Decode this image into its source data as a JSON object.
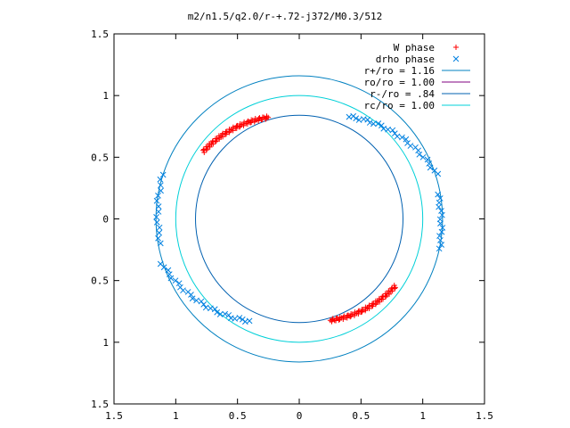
{
  "chart_data": {
    "type": "scatter",
    "title": "m2/n1.5/q2.0/r-+.72-j372/M0.3/512",
    "xlim": [
      -1.5,
      1.5
    ],
    "ylim": [
      -1.5,
      1.5
    ],
    "x_ticks": [
      -1.5,
      -1,
      -0.5,
      0,
      0.5,
      1,
      1.5
    ],
    "x_tick_labels": [
      "1.5",
      "1",
      "0.5",
      "0",
      "0.5",
      "1",
      "1.5"
    ],
    "y_ticks": [
      1.5,
      1,
      0.5,
      0,
      -0.5,
      -1,
      -1.5
    ],
    "y_tick_labels": [
      "1.5",
      "1",
      "0.5",
      "0",
      "0.5",
      "1",
      "1.5"
    ],
    "grid": false,
    "legend_position": "top-right",
    "colors": {
      "w_phase": "#ff0000",
      "drho_phase": "#0080e0",
      "r_plus": "#0080c0",
      "ro": "#800080",
      "r_minus": "#0060b0",
      "rc": "#00d0d8"
    },
    "legend": [
      {
        "label": "W phase",
        "marker": "plus"
      },
      {
        "label": "drho phase",
        "marker": "cross"
      },
      {
        "label": "r+/ro = 1.16",
        "marker": "line"
      },
      {
        "label": "ro/ro = 1.00",
        "marker": "line"
      },
      {
        "label": "r-/ro = .84",
        "marker": "line"
      },
      {
        "label": "rc/ro = 1.00",
        "marker": "line"
      }
    ],
    "circles": [
      {
        "name": "r+/ro = 1.16",
        "radius": 1.16,
        "color_key": "r_plus"
      },
      {
        "name": "r-/ro = .84",
        "radius": 0.84,
        "color_key": "r_minus"
      },
      {
        "name": "rc/ro = 1.00",
        "radius": 1.0,
        "color_key": "rc"
      }
    ],
    "series": [
      {
        "name": "W phase",
        "arcs": [
          {
            "start_deg": 107,
            "end_deg": 145,
            "r_start": 0.86,
            "r_end": 0.95,
            "count": 70
          },
          {
            "start_deg": 287,
            "end_deg": 325,
            "r_start": 0.86,
            "r_end": 0.95,
            "count": 70
          }
        ]
      },
      {
        "name": "drho phase",
        "arcs": [
          {
            "start_deg": 64,
            "end_deg": 18,
            "r_start": 0.92,
            "r_end": 1.17,
            "count": 28,
            "sparse_from": 0.15,
            "sparse_to": 0.75
          },
          {
            "start_deg": 190,
            "end_deg": 162,
            "r_start": 1.14,
            "r_end": 1.16,
            "count": 14
          },
          {
            "start_deg": 244,
            "end_deg": 198,
            "r_start": 0.92,
            "r_end": 1.17,
            "count": 28,
            "sparse_from": 0.15,
            "sparse_to": 0.75
          },
          {
            "start_deg": 10,
            "end_deg": -12,
            "r_start": 1.14,
            "r_end": 1.16,
            "count": 14
          }
        ]
      }
    ]
  }
}
